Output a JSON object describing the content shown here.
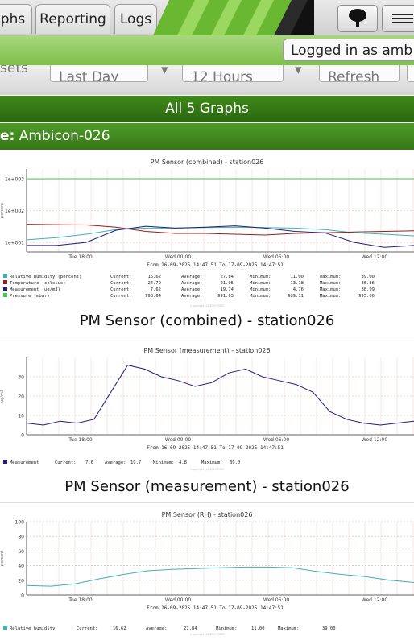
{
  "nav": {
    "tabs": [
      {
        "label": "phs"
      },
      {
        "label": "Reporting"
      },
      {
        "label": "Logs"
      }
    ],
    "icons": [
      "tree-icon",
      "menu-icon"
    ]
  },
  "user": {
    "logged_in_text": "Logged in as amb"
  },
  "controls": {
    "left_label": "sets",
    "period": "Last Day",
    "span": "12 Hours",
    "refresh": "Refresh"
  },
  "section": {
    "title": "All 5 Graphs"
  },
  "device": {
    "prefix": "e:",
    "name": "Ambicon-026"
  },
  "colors": {
    "rh": "#3ab3b8",
    "temp": "#9b1b1b",
    "measurement": "#1f1f7a",
    "pressure": "#3dcc3d"
  },
  "time_range": "From 16-09-2025 14:47:51 To 17-09-2025 14:47:51",
  "x_ticks": [
    "Tue 18:00",
    "Wed 00:00",
    "Wed 06:00",
    "Wed 12:00"
  ],
  "watermark": "Copyright (c) 2007 RRD",
  "charts": [
    {
      "caption": "PM Sensor (combined) - station026",
      "chart_data": {
        "type": "line",
        "title": "PM Sensor (combined) - station026",
        "yscale": "log",
        "ylim": [
          5,
          2000
        ],
        "y_ticks": [
          "1e+003",
          "1e+002",
          "1e+001"
        ],
        "ylabel": "percent",
        "x_ticks": [
          "Tue 18:00",
          "Wed 00:00",
          "Wed 06:00",
          "Wed 12:00"
        ],
        "series": [
          {
            "name": "Relative humidity (percent)",
            "values": [
              12,
              14,
              18,
              25,
              28,
              28,
              29,
              30,
              29,
              28,
              25,
              20,
              18,
              16
            ]
          },
          {
            "name": "Temperature (celsius)",
            "values": [
              37,
              36,
              35,
              30,
              22,
              19,
              19,
              18,
              17,
              19,
              20,
              21,
              22,
              23
            ]
          },
          {
            "name": "Measurement (ug/m3)",
            "values": [
              8,
              8,
              10,
              24,
              32,
              28,
              30,
              33,
              28,
              22,
              20,
              10,
              7,
              8
            ]
          },
          {
            "name": "Pressure (mbar)",
            "values": [
              992,
              993,
              993,
              993,
              994,
              994,
              994,
              994,
              994,
              994,
              994,
              994,
              995,
              995
            ]
          }
        ]
      },
      "legend": [
        {
          "name": "Relative humidity (percent)",
          "current": "16.62",
          "average": "27.84",
          "minimum": "11.00",
          "maximum": "39.00"
        },
        {
          "name": "Temperature (celsius)",
          "current": "24.79",
          "average": "21.05",
          "minimum": "13.18",
          "maximum": "36.86"
        },
        {
          "name": "Measurement (ug/m3)",
          "current": "7.62",
          "average": "19.74",
          "minimum": "4.76",
          "maximum": "38.99"
        },
        {
          "name": "Pressure (mbar)",
          "current": "993.64",
          "average": "991.63",
          "minimum": "989.11",
          "maximum": "995.06"
        }
      ]
    },
    {
      "caption": "PM Sensor (measurement) - station026",
      "chart_data": {
        "type": "line",
        "title": "PM Sensor (measurement) - station026",
        "ylim": [
          0,
          40
        ],
        "y_ticks": [
          "30",
          "20",
          "10",
          "0"
        ],
        "ylabel": "ug/m3",
        "x_ticks": [
          "Tue 18:00",
          "Wed 00:00",
          "Wed 06:00",
          "Wed 12:00"
        ],
        "series": [
          {
            "name": "Measurement",
            "values": [
              6,
              5,
              7,
              6,
              8,
              22,
              36,
              34,
              30,
              28,
              25,
              27,
              32,
              34,
              30,
              28,
              26,
              22,
              12,
              8,
              6,
              5,
              6,
              7
            ]
          }
        ]
      },
      "legend_line": {
        "label": "Measurement",
        "current": "7.6",
        "average": "19.7",
        "minimum": "4.8",
        "maximum": "39.0"
      }
    },
    {
      "caption": "",
      "chart_data": {
        "type": "line",
        "title": "PM Sensor (RH) - station026",
        "ylim": [
          0,
          100
        ],
        "y_ticks": [
          "100",
          "80",
          "60",
          "40",
          "20",
          "0"
        ],
        "ylabel": "percent",
        "x_ticks": [
          "Tue 18:00",
          "Wed 00:00",
          "Wed 06:00",
          "Wed 12:00"
        ],
        "series": [
          {
            "name": "Relative humidity (percent)",
            "values": [
              13,
              12,
              15,
              22,
              28,
              33,
              35,
              36,
              37,
              38,
              38,
              37,
              32,
              28,
              25,
              20,
              17
            ]
          }
        ]
      },
      "legend": [
        {
          "name": "Relative humidity",
          "current": "16.62",
          "average": "27.84",
          "minimum": "11.00",
          "maximum": "39.00"
        }
      ]
    }
  ],
  "legend_labels": {
    "current": "Current:",
    "average": "Average:",
    "minimum": "Minimum:",
    "maximum": "Maximum:"
  }
}
